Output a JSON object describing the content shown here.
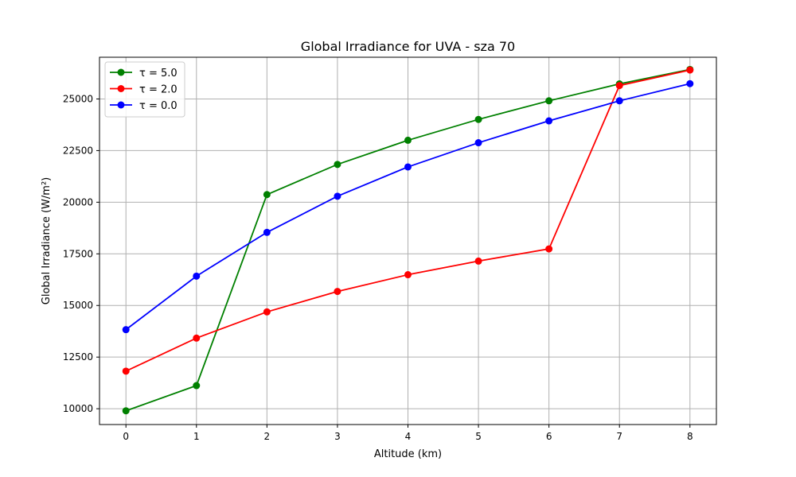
{
  "chart_data": {
    "type": "line",
    "title": "Global Irradiance for UVA - sza 70",
    "xlabel": "Altitude (km)",
    "ylabel": "Global Irradiance (W/m²)",
    "x": [
      0,
      1,
      2,
      3,
      4,
      5,
      6,
      7,
      8
    ],
    "x_ticks": [
      0,
      1,
      2,
      3,
      4,
      5,
      6,
      7,
      8
    ],
    "y_ticks": [
      10000,
      12500,
      15000,
      17500,
      20000,
      22500,
      25000
    ],
    "xlim": [
      -0.375,
      8.375
    ],
    "ylim": [
      9235,
      27020
    ],
    "grid": true,
    "legend_position": "upper-left",
    "series": [
      {
        "name": "τ = 5.0",
        "color": "#008000",
        "values": [
          9900,
          11120,
          20370,
          21830,
          23000,
          24010,
          24910,
          25730,
          26430
        ]
      },
      {
        "name": "τ = 2.0",
        "color": "#ff0000",
        "values": [
          11820,
          13420,
          14690,
          15680,
          16490,
          17150,
          17740,
          25650,
          26400
        ]
      },
      {
        "name": "τ = 0.0",
        "color": "#0000ff",
        "values": [
          13830,
          16420,
          18540,
          20290,
          21710,
          22880,
          23940,
          24910,
          25740
        ]
      }
    ]
  }
}
